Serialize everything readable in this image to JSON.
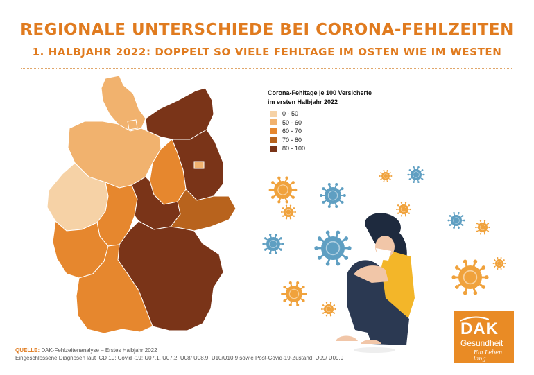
{
  "title": "REGIONALE UNTERSCHIEDE BEI CORONA-FEHLZEITEN",
  "subtitle": "1. HALBJAHR 2022: DOPPELT SO VIELE FEHLTAGE IM OSTEN WIE IM WESTEN",
  "legend": {
    "title_line1": "Corona-Fehltage je 100 Versicherte",
    "title_line2": "im ersten Halbjahr 2022",
    "items": [
      {
        "label": "0 - 50",
        "color": "#f6d2a6"
      },
      {
        "label": "50 - 60",
        "color": "#f1b26e"
      },
      {
        "label": "60 - 70",
        "color": "#e6872e"
      },
      {
        "label": "70 - 80",
        "color": "#b8631d"
      },
      {
        "label": "80 - 100",
        "color": "#7a3418"
      }
    ]
  },
  "colors": {
    "accent": "#e07b1f",
    "dak_orange": "#e98b25",
    "virus_orange": "#f0a23c",
    "virus_blue": "#5f9fc2"
  },
  "footer": {
    "source_label": "QUELLE:",
    "source_text": "DAK-Fehlzeitenanalyse – Erstes Halbjahr 2022",
    "note": "Eingeschlossene Diagnosen laut ICD 10: Covid -19: U07.1, U07.2, U08/ U08.9, U10/U10.9 sowie Post-Covid-19-Zustand: U09/ U09.9"
  },
  "logo": {
    "brand": "DAK",
    "sub": "Gesundheit",
    "slogan": "Ein Leben lang."
  }
}
